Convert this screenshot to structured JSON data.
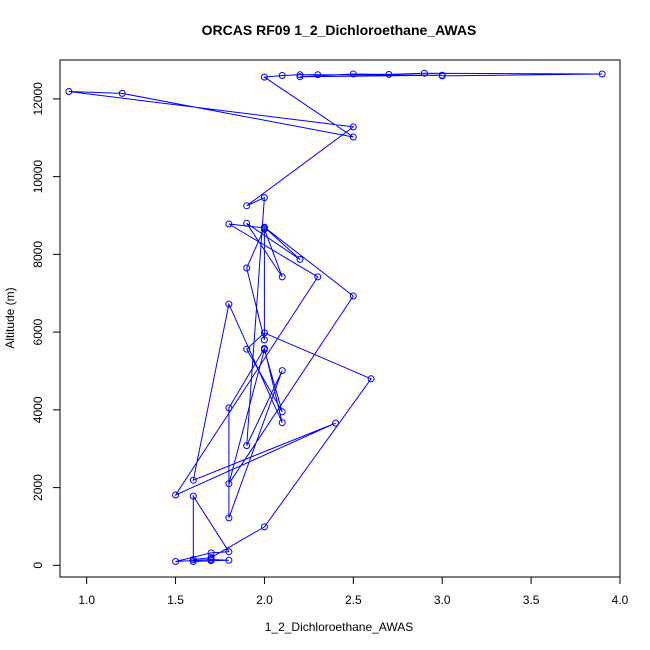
{
  "chart_data": {
    "type": "line",
    "title": "ORCAS RF09 1_2_Dichloroethane_AWAS",
    "xlabel": "1_2_Dichloroethane_AWAS",
    "ylabel": "Altitude (m)",
    "xlim": [
      0.85,
      4.0
    ],
    "ylim": [
      -300,
      13000
    ],
    "xticks": [
      1.0,
      1.5,
      2.0,
      2.5,
      3.0,
      3.5,
      4.0
    ],
    "xtick_labels": [
      "1.0",
      "1.5",
      "2.0",
      "2.5",
      "3.0",
      "3.5",
      "4.0"
    ],
    "yticks": [
      0,
      2000,
      4000,
      6000,
      8000,
      10000,
      12000
    ],
    "ytick_labels": [
      "0",
      "2000",
      "4000",
      "6000",
      "8000",
      "10000",
      "12000"
    ],
    "grid": false,
    "marker": "open-circle",
    "series": [
      {
        "color": "#0000ff",
        "points": [
          [
            1.6,
            100
          ],
          [
            1.7,
            120
          ],
          [
            1.8,
            130
          ],
          [
            1.7,
            150
          ],
          [
            1.5,
            100
          ],
          [
            1.7,
            320
          ],
          [
            1.8,
            350
          ],
          [
            1.6,
            1780
          ],
          [
            1.6,
            150
          ],
          [
            1.7,
            200
          ],
          [
            2.0,
            990
          ],
          [
            2.6,
            4800
          ],
          [
            2.0,
            5980
          ],
          [
            1.9,
            5560
          ],
          [
            2.1,
            3950
          ],
          [
            2.0,
            5550
          ],
          [
            1.8,
            2100
          ],
          [
            2.5,
            6930
          ],
          [
            2.0,
            8700
          ],
          [
            2.2,
            7870
          ],
          [
            1.9,
            8800
          ],
          [
            2.1,
            7420
          ],
          [
            2.0,
            8650
          ],
          [
            2.0,
            5800
          ],
          [
            1.9,
            7650
          ],
          [
            2.0,
            8680
          ],
          [
            1.8,
            8780
          ],
          [
            2.3,
            7420
          ],
          [
            1.5,
            1810
          ],
          [
            2.4,
            3660
          ],
          [
            1.6,
            2190
          ],
          [
            1.8,
            6720
          ],
          [
            2.1,
            3670
          ],
          [
            2.0,
            5580
          ],
          [
            1.8,
            4050
          ],
          [
            1.8,
            1220
          ],
          [
            2.1,
            5010
          ],
          [
            1.9,
            3080
          ],
          [
            2.0,
            9460
          ],
          [
            1.9,
            9250
          ],
          [
            2.5,
            11280
          ],
          [
            0.9,
            12190
          ],
          [
            1.2,
            12140
          ],
          [
            2.5,
            11020
          ],
          [
            2.0,
            12560
          ],
          [
            2.1,
            12600
          ],
          [
            2.2,
            12620
          ],
          [
            2.3,
            12620
          ],
          [
            3.0,
            12610
          ],
          [
            2.2,
            12570
          ],
          [
            2.5,
            12640
          ],
          [
            2.7,
            12630
          ],
          [
            2.9,
            12660
          ],
          [
            3.9,
            12640
          ],
          [
            3.0,
            12590
          ]
        ]
      }
    ]
  }
}
